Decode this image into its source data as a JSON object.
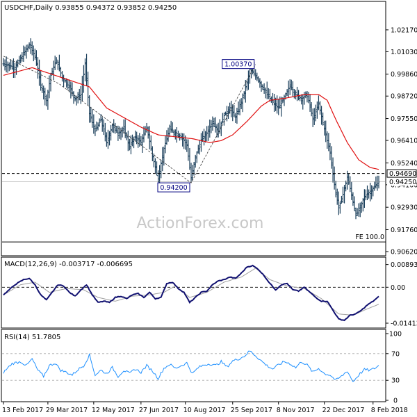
{
  "chart_data": [
    {
      "type": "line",
      "panel": "price",
      "title": "USDCHF,Daily  0.93855 0.94372 0.93852 0.94250",
      "ylim": [
        0.9062,
        1.03
      ],
      "yticks": [
        "1.02170",
        "1.01030",
        "0.99860",
        "0.98720",
        "0.97550",
        "0.96410",
        "0.95240",
        "0.94100",
        "0.92930",
        "0.91760",
        "0.90620"
      ],
      "ytick_values": [
        1.0217,
        1.0103,
        0.9986,
        0.9872,
        0.9755,
        0.9641,
        0.9524,
        0.941,
        0.9293,
        0.9176,
        0.9062
      ],
      "xlim": [
        0,
        262
      ],
      "xticks": [
        {
          "label": "13 Feb 2017",
          "x": 0
        },
        {
          "label": "29 Mar 2017",
          "x": 31
        },
        {
          "label": "12 May 2017",
          "x": 63
        },
        {
          "label": "27 Jun 2017",
          "x": 96
        },
        {
          "label": "10 Aug 2017",
          "x": 127
        },
        {
          "label": "25 Sep 2017",
          "x": 160
        },
        {
          "label": "8 Nov 2017",
          "x": 192
        },
        {
          "label": "22 Dec 2017",
          "x": 224
        },
        {
          "label": "8 Feb 2018",
          "x": 258
        }
      ],
      "ma_color": "#e01010",
      "bar_color": "#1a3e5a",
      "price_anchors": [
        [
          0,
          1.004
        ],
        [
          8,
          1.002
        ],
        [
          14,
          1.009
        ],
        [
          18,
          1.014
        ],
        [
          22,
          1.008
        ],
        [
          26,
          0.993
        ],
        [
          30,
          0.985
        ],
        [
          33,
          0.998
        ],
        [
          37,
          1.006
        ],
        [
          41,
          0.997
        ],
        [
          46,
          0.992
        ],
        [
          50,
          0.986
        ],
        [
          54,
          0.988
        ],
        [
          57,
          1.004
        ],
        [
          60,
          0.978
        ],
        [
          64,
          0.969
        ],
        [
          68,
          0.975
        ],
        [
          72,
          0.963
        ],
        [
          76,
          0.972
        ],
        [
          80,
          0.968
        ],
        [
          84,
          0.97
        ],
        [
          88,
          0.961
        ],
        [
          92,
          0.966
        ],
        [
          96,
          0.963
        ],
        [
          100,
          0.971
        ],
        [
          104,
          0.956
        ],
        [
          108,
          0.944
        ],
        [
          112,
          0.96
        ],
        [
          116,
          0.97
        ],
        [
          120,
          0.968
        ],
        [
          124,
          0.966
        ],
        [
          128,
          0.962
        ],
        [
          131,
          0.944
        ],
        [
          134,
          0.9555
        ],
        [
          138,
          0.964
        ],
        [
          142,
          0.968
        ],
        [
          146,
          0.974
        ],
        [
          150,
          0.969
        ],
        [
          154,
          0.977
        ],
        [
          158,
          0.981
        ],
        [
          162,
          0.976
        ],
        [
          166,
          0.984
        ],
        [
          170,
          0.994
        ],
        [
          172,
          1.001
        ],
        [
          176,
          0.998
        ],
        [
          180,
          0.993
        ],
        [
          184,
          0.988
        ],
        [
          188,
          0.984
        ],
        [
          192,
          0.981
        ],
        [
          196,
          0.986
        ],
        [
          200,
          0.993
        ],
        [
          204,
          0.988
        ],
        [
          208,
          0.986
        ],
        [
          212,
          0.988
        ],
        [
          216,
          0.975
        ],
        [
          220,
          0.983
        ],
        [
          224,
          0.97
        ],
        [
          228,
          0.958
        ],
        [
          231,
          0.941
        ],
        [
          234,
          0.929
        ],
        [
          237,
          0.936
        ],
        [
          240,
          0.945
        ],
        [
          243,
          0.936
        ],
        [
          246,
          0.925
        ],
        [
          249,
          0.929
        ],
        [
          252,
          0.935
        ],
        [
          255,
          0.937
        ],
        [
          258,
          0.939
        ],
        [
          262,
          0.9425
        ]
      ],
      "ma_anchors": [
        [
          0,
          0.998
        ],
        [
          20,
          1.002
        ],
        [
          40,
          0.997
        ],
        [
          60,
          0.992
        ],
        [
          72,
          0.981
        ],
        [
          84,
          0.976
        ],
        [
          96,
          0.971
        ],
        [
          108,
          0.967
        ],
        [
          120,
          0.966
        ],
        [
          132,
          0.965
        ],
        [
          144,
          0.963
        ],
        [
          152,
          0.964
        ],
        [
          160,
          0.967
        ],
        [
          170,
          0.974
        ],
        [
          180,
          0.982
        ],
        [
          186,
          0.985
        ],
        [
          196,
          0.986
        ],
        [
          210,
          0.988
        ],
        [
          220,
          0.988
        ],
        [
          226,
          0.985
        ],
        [
          232,
          0.975
        ],
        [
          240,
          0.963
        ],
        [
          248,
          0.954
        ],
        [
          256,
          0.95
        ],
        [
          262,
          0.949
        ]
      ],
      "zigzag": [
        [
          0,
          1.008
        ],
        [
          39,
          0.9935
        ],
        [
          131,
          0.942
        ],
        [
          176,
          1.0037
        ]
      ],
      "zigzag_color": "#333333",
      "annotations": [
        {
          "text": "1.00370",
          "x": 176,
          "y": 1.0037
        },
        {
          "text": "0.94200",
          "x": 131,
          "y": 0.942
        }
      ],
      "hlines": [
        {
          "label": "0.94690",
          "value": 0.9469,
          "style": "dashed"
        },
        {
          "label": "0.94250",
          "value": 0.9425,
          "style": "solid"
        },
        {
          "label": "",
          "value": 0.9112,
          "style": "solid"
        }
      ],
      "fe_label": "FE 100.0",
      "watermark": "ActionForex.com"
    },
    {
      "type": "line",
      "panel": "macd",
      "title": "MACD(12,26,9) -0.003717 -0.006695",
      "ylim": [
        -0.0155,
        0.0102
      ],
      "yticks": [
        "0.008934",
        "0.00",
        "-0.014136"
      ],
      "ytick_values": [
        0.008934,
        0.0,
        -0.014136
      ],
      "macd_color": "#101070",
      "signal_color": "#a0a0a0",
      "macd_anchors": [
        [
          0,
          -0.003
        ],
        [
          8,
          0.001
        ],
        [
          14,
          0.003
        ],
        [
          18,
          0.0035
        ],
        [
          22,
          0.001
        ],
        [
          26,
          -0.003
        ],
        [
          30,
          -0.005
        ],
        [
          34,
          -0.002
        ],
        [
          38,
          0.001
        ],
        [
          42,
          0.0005
        ],
        [
          46,
          -0.002
        ],
        [
          50,
          -0.0035
        ],
        [
          54,
          -0.001
        ],
        [
          58,
          0.001
        ],
        [
          62,
          -0.003
        ],
        [
          66,
          -0.006
        ],
        [
          70,
          -0.0055
        ],
        [
          74,
          -0.006
        ],
        [
          78,
          -0.004
        ],
        [
          82,
          -0.0035
        ],
        [
          86,
          -0.0045
        ],
        [
          90,
          -0.003
        ],
        [
          94,
          -0.0025
        ],
        [
          98,
          -0.004
        ],
        [
          102,
          -0.002
        ],
        [
          106,
          -0.0045
        ],
        [
          110,
          -0.004
        ],
        [
          114,
          0.0015
        ],
        [
          118,
          0.002
        ],
        [
          122,
          -0.0005
        ],
        [
          126,
          -0.002
        ],
        [
          130,
          -0.006
        ],
        [
          134,
          -0.004
        ],
        [
          138,
          -0.002
        ],
        [
          142,
          -0.0015
        ],
        [
          146,
          0.001
        ],
        [
          150,
          0.0025
        ],
        [
          154,
          0.003
        ],
        [
          158,
          0.004
        ],
        [
          162,
          0.0035
        ],
        [
          166,
          0.0055
        ],
        [
          170,
          0.008
        ],
        [
          174,
          0.0085
        ],
        [
          178,
          0.007
        ],
        [
          182,
          0.0045
        ],
        [
          186,
          0.0015
        ],
        [
          190,
          -0.001
        ],
        [
          194,
          0.001
        ],
        [
          198,
          0.0015
        ],
        [
          202,
          -0.001
        ],
        [
          206,
          -0.0015
        ],
        [
          210,
          0.0
        ],
        [
          214,
          -0.002
        ],
        [
          218,
          -0.004
        ],
        [
          222,
          -0.0055
        ],
        [
          226,
          -0.0055
        ],
        [
          230,
          -0.009
        ],
        [
          234,
          -0.0125
        ],
        [
          238,
          -0.013
        ],
        [
          242,
          -0.011
        ],
        [
          246,
          -0.0105
        ],
        [
          250,
          -0.009
        ],
        [
          254,
          -0.007
        ],
        [
          258,
          -0.0055
        ],
        [
          262,
          -0.0037
        ]
      ],
      "signal_anchors": [
        [
          0,
          -0.003
        ],
        [
          12,
          0.001
        ],
        [
          22,
          0.002
        ],
        [
          32,
          -0.002
        ],
        [
          44,
          -0.0005
        ],
        [
          56,
          -0.001
        ],
        [
          66,
          -0.004
        ],
        [
          78,
          -0.0055
        ],
        [
          90,
          -0.0035
        ],
        [
          102,
          -0.003
        ],
        [
          112,
          -0.002
        ],
        [
          120,
          0.0005
        ],
        [
          130,
          -0.004
        ],
        [
          142,
          -0.002
        ],
        [
          154,
          0.002
        ],
        [
          166,
          0.004
        ],
        [
          176,
          0.0075
        ],
        [
          186,
          0.003
        ],
        [
          198,
          0.0005
        ],
        [
          210,
          -0.0005
        ],
        [
          222,
          -0.0045
        ],
        [
          234,
          -0.0105
        ],
        [
          244,
          -0.011
        ],
        [
          254,
          -0.0085
        ],
        [
          262,
          -0.0067
        ]
      ]
    },
    {
      "type": "line",
      "panel": "rsi",
      "title": "RSI(14) 51.7805",
      "ylim": [
        0,
        100
      ],
      "yticks": [
        "100",
        "70",
        "30",
        "0"
      ],
      "ytick_values": [
        100,
        70,
        30,
        0
      ],
      "dashed_levels": [
        70,
        30
      ],
      "rsi_color": "#1e90ff",
      "rsi_anchors": [
        [
          0,
          42
        ],
        [
          6,
          55
        ],
        [
          12,
          58
        ],
        [
          16,
          52
        ],
        [
          20,
          62
        ],
        [
          24,
          45
        ],
        [
          28,
          36
        ],
        [
          32,
          52
        ],
        [
          36,
          56
        ],
        [
          40,
          45
        ],
        [
          44,
          42
        ],
        [
          48,
          38
        ],
        [
          52,
          46
        ],
        [
          56,
          52
        ],
        [
          60,
          68
        ],
        [
          64,
          38
        ],
        [
          68,
          45
        ],
        [
          72,
          40
        ],
        [
          76,
          49
        ],
        [
          80,
          36
        ],
        [
          84,
          45
        ],
        [
          88,
          40
        ],
        [
          92,
          47
        ],
        [
          96,
          42
        ],
        [
          100,
          52
        ],
        [
          104,
          44
        ],
        [
          108,
          33
        ],
        [
          112,
          48
        ],
        [
          116,
          54
        ],
        [
          120,
          48
        ],
        [
          124,
          52
        ],
        [
          128,
          56
        ],
        [
          132,
          40
        ],
        [
          136,
          49
        ],
        [
          140,
          53
        ],
        [
          144,
          55
        ],
        [
          148,
          52
        ],
        [
          152,
          58
        ],
        [
          156,
          50
        ],
        [
          160,
          59
        ],
        [
          164,
          62
        ],
        [
          168,
          66
        ],
        [
          172,
          74
        ],
        [
          176,
          67
        ],
        [
          180,
          59
        ],
        [
          184,
          52
        ],
        [
          188,
          47
        ],
        [
          192,
          53
        ],
        [
          196,
          58
        ],
        [
          200,
          55
        ],
        [
          204,
          49
        ],
        [
          208,
          58
        ],
        [
          212,
          53
        ],
        [
          216,
          42
        ],
        [
          220,
          48
        ],
        [
          224,
          40
        ],
        [
          228,
          38
        ],
        [
          232,
          30
        ],
        [
          236,
          36
        ],
        [
          240,
          44
        ],
        [
          244,
          28
        ],
        [
          248,
          38
        ],
        [
          252,
          46
        ],
        [
          256,
          45
        ],
        [
          260,
          49
        ],
        [
          262,
          52
        ]
      ]
    }
  ]
}
